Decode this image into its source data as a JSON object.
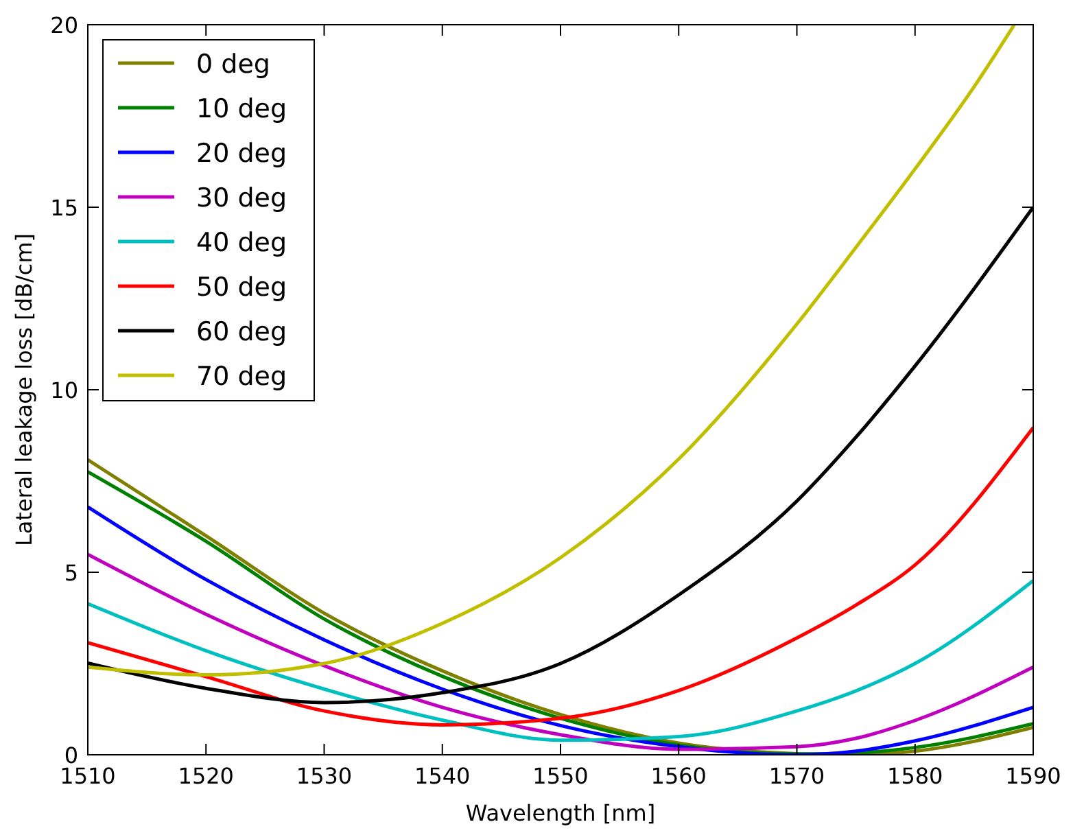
{
  "chart_data": {
    "type": "line",
    "xlabel": "Wavelength [nm]",
    "ylabel": "Lateral leakage loss [dB/cm]",
    "x": [
      1510,
      1520,
      1530,
      1540,
      1550,
      1560,
      1570,
      1575,
      1580,
      1590
    ],
    "xlim": [
      1510,
      1590
    ],
    "ylim": [
      0,
      20
    ],
    "xticks": [
      1510,
      1520,
      1530,
      1540,
      1550,
      1560,
      1570,
      1580,
      1590
    ],
    "yticks": [
      0,
      5,
      10,
      15,
      20
    ],
    "grid": false,
    "legend": "top left",
    "marker": "none",
    "line_style": "solid",
    "series": [
      {
        "name": "0 deg",
        "color": "#808000",
        "values": [
          8.08,
          6.0,
          3.88,
          2.3,
          1.1,
          0.32,
          0.03,
          0.0,
          0.1,
          0.75
        ]
      },
      {
        "name": "10 deg",
        "color": "#008000",
        "values": [
          7.75,
          5.85,
          3.72,
          2.15,
          1.0,
          0.27,
          0.02,
          0.05,
          0.2,
          0.85
        ]
      },
      {
        "name": "20 deg",
        "color": "#0000ff",
        "values": [
          6.79,
          4.8,
          3.15,
          1.8,
          0.8,
          0.22,
          0.0,
          0.1,
          0.38,
          1.3
        ]
      },
      {
        "name": "30 deg",
        "color": "#bf00bf",
        "values": [
          5.49,
          3.85,
          2.44,
          1.3,
          0.55,
          0.15,
          0.22,
          0.45,
          0.94,
          2.4
        ]
      },
      {
        "name": "40 deg",
        "color": "#00bfbf",
        "values": [
          4.14,
          2.85,
          1.8,
          0.95,
          0.4,
          0.5,
          1.2,
          1.75,
          2.5,
          4.77
        ]
      },
      {
        "name": "50 deg",
        "color": "#ff0000",
        "values": [
          3.07,
          2.14,
          1.2,
          0.82,
          1.0,
          1.76,
          3.2,
          4.1,
          5.2,
          8.96
        ]
      },
      {
        "name": "60 deg",
        "color": "#000000",
        "values": [
          2.51,
          1.82,
          1.43,
          1.7,
          2.5,
          4.38,
          6.95,
          8.7,
          10.65,
          15.0
        ]
      },
      {
        "name": "70 deg",
        "color": "#bfbf00",
        "x": [
          1510,
          1520,
          1530,
          1540,
          1550,
          1560,
          1570,
          1575,
          1580,
          1585,
          1588.4
        ],
        "values": [
          2.4,
          2.19,
          2.5,
          3.6,
          5.4,
          8.1,
          11.8,
          13.9,
          16.05,
          18.3,
          20.0
        ]
      }
    ]
  }
}
